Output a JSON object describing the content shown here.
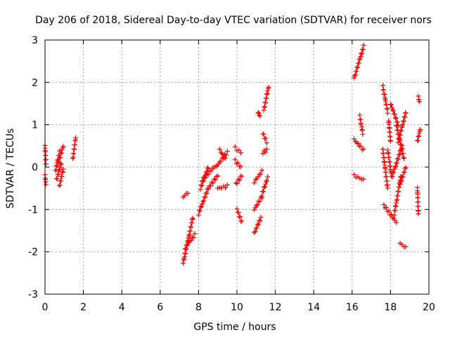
{
  "chart_data": {
    "type": "scatter",
    "title": "Day 206 of 2018, Sidereal Day-to-day VTEC variation (SDTVAR) for receiver nors",
    "xlabel": "GPS time / hours",
    "ylabel": "SDTVAR / TECUs",
    "xlim": [
      0,
      20
    ],
    "ylim": [
      -3,
      3
    ],
    "xticks": [
      "0",
      "2",
      "4",
      "6",
      "8",
      "10",
      "12",
      "14",
      "16",
      "18",
      "20"
    ],
    "yticks": [
      "-3",
      "-2",
      "-1",
      "0",
      "1",
      "2",
      "3"
    ],
    "grid": true,
    "marker": "+",
    "marker_color": "#ff0000",
    "segments": [
      {
        "x0": 0.0,
        "x1": 0.05,
        "y0": 0.5,
        "y1": 0.1
      },
      {
        "x0": 0.0,
        "x1": 0.05,
        "y0": -0.2,
        "y1": -0.4
      },
      {
        "x0": 0.55,
        "x1": 0.75,
        "y0": -0.1,
        "y1": 0.35
      },
      {
        "x0": 0.6,
        "x1": 0.85,
        "y0": -0.3,
        "y1": 0.1
      },
      {
        "x0": 0.7,
        "x1": 0.95,
        "y0": 0.1,
        "y1": 0.5
      },
      {
        "x0": 0.75,
        "x1": 0.95,
        "y0": -0.45,
        "y1": -0.05
      },
      {
        "x0": 1.45,
        "x1": 1.6,
        "y0": 0.2,
        "y1": 0.7
      },
      {
        "x0": 7.2,
        "x1": 7.45,
        "y0": -0.7,
        "y1": -0.6
      },
      {
        "x0": 7.2,
        "x1": 7.7,
        "y0": -2.25,
        "y1": -1.2
      },
      {
        "x0": 7.3,
        "x1": 7.8,
        "y0": -1.9,
        "y1": -1.6
      },
      {
        "x0": 8.0,
        "x1": 8.5,
        "y0": -1.1,
        "y1": -0.5
      },
      {
        "x0": 8.1,
        "x1": 8.5,
        "y0": -0.5,
        "y1": 0.0
      },
      {
        "x0": 8.2,
        "x1": 8.8,
        "y0": -0.3,
        "y1": 0.0
      },
      {
        "x0": 8.5,
        "x1": 9.0,
        "y0": -0.5,
        "y1": -0.2
      },
      {
        "x0": 9.0,
        "x1": 9.5,
        "y0": -0.5,
        "y1": -0.45
      },
      {
        "x0": 8.9,
        "x1": 9.5,
        "y0": 0.0,
        "y1": 0.35
      },
      {
        "x0": 9.1,
        "x1": 9.4,
        "y0": 0.4,
        "y1": 0.2
      },
      {
        "x0": 9.9,
        "x1": 10.2,
        "y0": 0.45,
        "y1": 0.35
      },
      {
        "x0": 9.9,
        "x1": 10.2,
        "y0": 0.15,
        "y1": 0.0
      },
      {
        "x0": 9.95,
        "x1": 10.25,
        "y0": -0.4,
        "y1": -0.2
      },
      {
        "x0": 10.0,
        "x1": 10.25,
        "y0": -1.0,
        "y1": -1.3
      },
      {
        "x0": 10.9,
        "x1": 11.25,
        "y0": -1.55,
        "y1": -1.2
      },
      {
        "x0": 10.9,
        "x1": 11.3,
        "y0": -1.0,
        "y1": -0.7
      },
      {
        "x0": 10.9,
        "x1": 11.3,
        "y0": -0.35,
        "y1": -0.1
      },
      {
        "x0": 11.1,
        "x1": 11.2,
        "y0": 1.3,
        "y1": 1.2
      },
      {
        "x0": 11.3,
        "x1": 11.6,
        "y0": -0.65,
        "y1": -0.25
      },
      {
        "x0": 11.35,
        "x1": 11.55,
        "y0": 0.35,
        "y1": 0.4
      },
      {
        "x0": 11.35,
        "x1": 11.55,
        "y0": 0.8,
        "y1": 0.6
      },
      {
        "x0": 11.4,
        "x1": 11.65,
        "y0": 1.35,
        "y1": 1.9
      },
      {
        "x0": 16.1,
        "x1": 16.6,
        "y0": 2.1,
        "y1": 2.85
      },
      {
        "x0": 16.1,
        "x1": 16.6,
        "y0": 0.65,
        "y1": 0.4
      },
      {
        "x0": 16.1,
        "x1": 16.6,
        "y0": -0.2,
        "y1": -0.3
      },
      {
        "x0": 16.4,
        "x1": 16.55,
        "y0": 1.2,
        "y1": 0.8
      },
      {
        "x0": 17.6,
        "x1": 17.85,
        "y0": 1.9,
        "y1": 1.3
      },
      {
        "x0": 17.6,
        "x1": 17.85,
        "y0": 0.4,
        "y1": -0.5
      },
      {
        "x0": 17.65,
        "x1": 18.3,
        "y0": -0.9,
        "y1": -1.3
      },
      {
        "x0": 17.85,
        "x1": 18.05,
        "y0": 0.4,
        "y1": -0.2
      },
      {
        "x0": 17.9,
        "x1": 18.0,
        "y0": 1.1,
        "y1": 0.6
      },
      {
        "x0": 18.0,
        "x1": 18.4,
        "y0": 1.5,
        "y1": 1.0
      },
      {
        "x0": 18.1,
        "x1": 18.6,
        "y0": -0.2,
        "y1": 0.5
      },
      {
        "x0": 18.2,
        "x1": 18.55,
        "y0": -1.1,
        "y1": -0.2
      },
      {
        "x0": 18.3,
        "x1": 18.7,
        "y0": 1.0,
        "y1": 0.2
      },
      {
        "x0": 18.4,
        "x1": 18.8,
        "y0": 0.6,
        "y1": 1.3
      },
      {
        "x0": 18.5,
        "x1": 18.8,
        "y0": -0.4,
        "y1": 0.0
      },
      {
        "x0": 18.5,
        "x1": 18.8,
        "y0": -1.8,
        "y1": -1.9
      },
      {
        "x0": 19.4,
        "x1": 19.45,
        "y0": -0.5,
        "y1": -1.1
      },
      {
        "x0": 19.45,
        "x1": 19.5,
        "y0": 1.65,
        "y1": 1.55
      },
      {
        "x0": 19.4,
        "x1": 19.55,
        "y0": 0.6,
        "y1": 0.9
      }
    ]
  }
}
